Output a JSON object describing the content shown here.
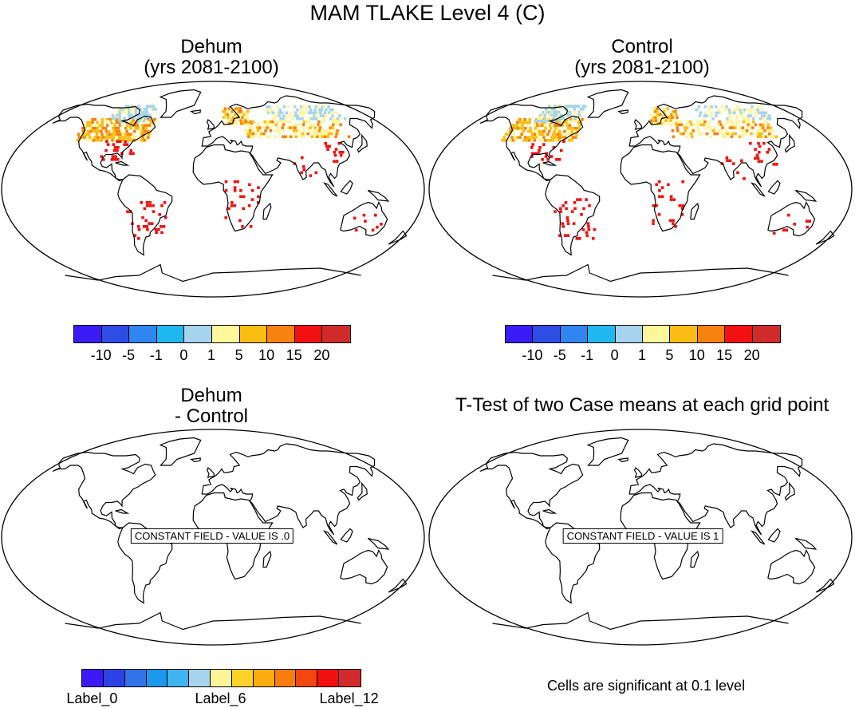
{
  "title": "MAM TLAKE Level 4 (C)",
  "panels": [
    {
      "title_line1": "Dehum",
      "title_line2": "(yrs 2081-2100)",
      "map": "data"
    },
    {
      "title_line1": "Control",
      "title_line2": "(yrs 2081-2100)",
      "map": "data"
    },
    {
      "title_line1": "Dehum",
      "title_line2": "- Control",
      "map": "constant",
      "constant_label": "CONSTANT FIELD - VALUE IS .0"
    },
    {
      "title_line1": "T-Test of two Case means at each grid point",
      "title_line2": "",
      "map": "constant",
      "constant_label": "CONSTANT FIELD - VALUE IS 1"
    }
  ],
  "colorbar_top": {
    "colors": [
      "#3b1cf5",
      "#2e4ce6",
      "#2f86f0",
      "#1fb8f0",
      "#a6d4ee",
      "#fff59a",
      "#fbbd14",
      "#f7820f",
      "#f21010",
      "#d12a2a"
    ],
    "labels": [
      "-10",
      "-5",
      "-1",
      "0",
      "1",
      "5",
      "10",
      "15",
      "20"
    ]
  },
  "colorbar_bottom": {
    "colors": [
      "#3d18f6",
      "#2d42e4",
      "#3373e8",
      "#1b99ec",
      "#3fb4ee",
      "#a7d3ee",
      "#fff598",
      "#fed227",
      "#fbad0f",
      "#f77e0d",
      "#f2470e",
      "#f10f0f",
      "#d32b2b"
    ],
    "labels": [
      "Label_0",
      "Label_6",
      "Label_12"
    ]
  },
  "note": "Cells are significant at 0.1 level",
  "colors": {
    "coast": "#000000",
    "lake_cold": "#a6d4ee",
    "lake_mild": "#fff59a",
    "lake_warm": "#fbbd14",
    "lake_hot": "#f7820f",
    "lake_red": "#f21010"
  }
}
